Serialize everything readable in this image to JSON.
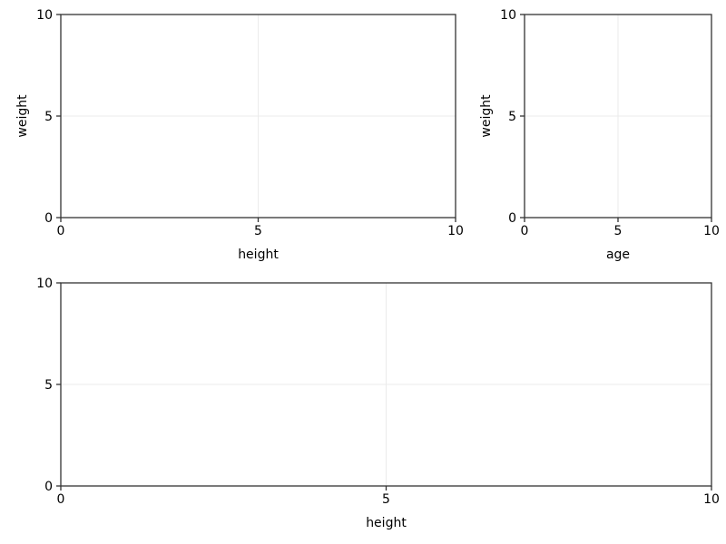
{
  "chart_data": [
    {
      "type": "scatter",
      "title": "",
      "xlabel": "height",
      "ylabel": "weight",
      "xlim": [
        0,
        10
      ],
      "ylim": [
        0,
        10
      ],
      "xticks": [
        "0",
        "5",
        "10"
      ],
      "yticks": [
        "0",
        "5",
        "10"
      ],
      "grid": true,
      "series": []
    },
    {
      "type": "scatter",
      "title": "",
      "xlabel": "age",
      "ylabel": "weight",
      "xlim": [
        0,
        10
      ],
      "ylim": [
        0,
        10
      ],
      "xticks": [
        "0",
        "5",
        "10"
      ],
      "yticks": [
        "0",
        "5",
        "10"
      ],
      "grid": true,
      "series": []
    },
    {
      "type": "scatter",
      "title": "",
      "xlabel": "height",
      "ylabel": "",
      "xlim": [
        0,
        10
      ],
      "ylim": [
        0,
        10
      ],
      "xticks": [
        "0",
        "5",
        "10"
      ],
      "yticks": [
        "0",
        "5",
        "10"
      ],
      "grid": true,
      "series": []
    }
  ],
  "colors": {
    "axis": "#333333",
    "grid": "#ebebeb",
    "text": "#000000"
  }
}
